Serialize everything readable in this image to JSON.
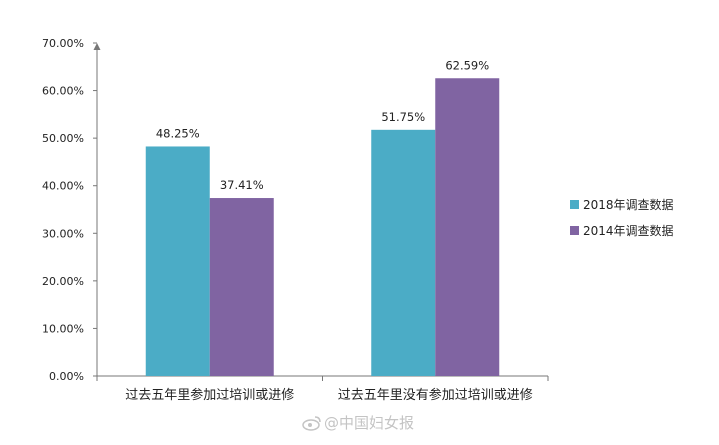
{
  "chart_data": {
    "type": "bar",
    "categories": [
      "过去五年里参加过培训或进修",
      "过去五年里没有参加过培训或进修"
    ],
    "series": [
      {
        "name": "2018年调查数据",
        "values": [
          48.25,
          51.75
        ],
        "labels": [
          "48.25%",
          "51.75%"
        ],
        "color": "#4bacc6"
      },
      {
        "name": "2014年调查数据",
        "values": [
          37.41,
          62.59
        ],
        "labels": [
          "37.41%",
          "62.59%"
        ],
        "color": "#8064a2"
      }
    ],
    "y_ticks": [
      "0.00%",
      "10.00%",
      "20.00%",
      "30.00%",
      "40.00%",
      "50.00%",
      "60.00%",
      "70.00%"
    ],
    "ylim": [
      0,
      70
    ],
    "grid": false,
    "legend_position": "right"
  },
  "watermark": {
    "text": "@中国妇女报"
  }
}
